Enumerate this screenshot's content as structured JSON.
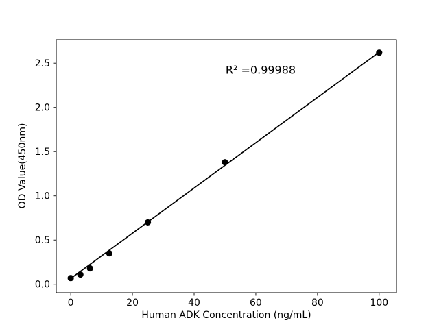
{
  "figure": {
    "background": "#ffffff",
    "foreground": "#000000"
  },
  "chart_data": {
    "type": "scatter",
    "title": "",
    "xlabel": "Human ADK Concentration (ng/mL)",
    "ylabel": "OD Value(450nm)",
    "x": [
      0,
      3.125,
      6.25,
      12.5,
      25,
      50,
      100
    ],
    "y": [
      0.07,
      0.11,
      0.18,
      0.35,
      0.7,
      1.38,
      2.62
    ],
    "trendline": {
      "x": [
        0,
        100
      ],
      "y": [
        0.065,
        2.625
      ]
    },
    "annotation": {
      "text": "R² =0.99988",
      "x": 61.5,
      "y": 2.42
    },
    "x_tick_values": [
      0,
      20,
      40,
      60,
      80,
      100
    ],
    "x_tick_labels": [
      "0",
      "20",
      "40",
      "60",
      "80",
      "100"
    ],
    "y_tick_values": [
      0.0,
      0.5,
      1.0,
      1.5,
      2.0,
      2.5
    ],
    "y_tick_labels": [
      "0.0",
      "0.5",
      "1.0",
      "1.5",
      "2.0",
      "2.5"
    ],
    "xlim": [
      -4.7,
      105.6
    ],
    "ylim": [
      -0.095,
      2.765
    ],
    "grid": false,
    "legend": null,
    "marker_color": "#000000",
    "line_color": "#000000",
    "marker_radius": 4.6,
    "line_width": 1.7
  }
}
